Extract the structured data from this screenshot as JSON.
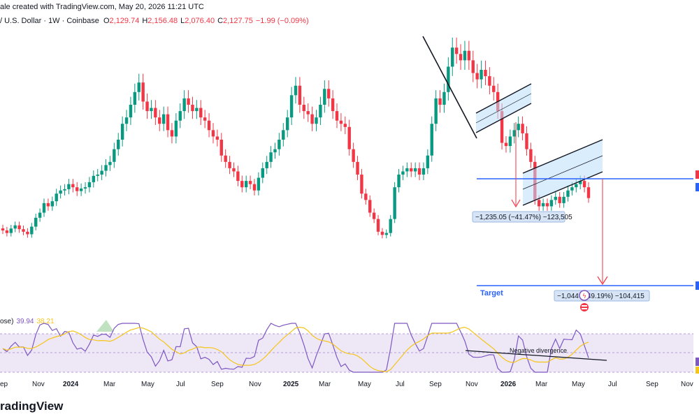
{
  "header": {
    "created": "ale created with TradingView.com, May 20, 2026 11:21 UTC",
    "symbol": "/ U.S. Dollar · 1W · Coinbase",
    "ohlc": [
      {
        "k": "O",
        "v": "2,129.74"
      },
      {
        "k": "H",
        "v": "2,156.48"
      },
      {
        "k": "L",
        "v": "2,076.40"
      },
      {
        "k": "C",
        "v": "2,127.75"
      },
      {
        "k": "",
        "v": "−1.99 (−0.09%)"
      }
    ]
  },
  "rsi_legend": {
    "name": "ose)",
    "value1": "39.94",
    "value2": "38.21"
  },
  "annotations": {
    "measure1": "−1,235.05 (−41.47%) −123,505",
    "measure2": "−1,044 (−49.19%) −104,415",
    "target": "Target",
    "divergence": "Negative divergence"
  },
  "brand": "radingView",
  "colors": {
    "up": "#089981",
    "down": "#f23645",
    "line": "#2962ff",
    "rsi": "#7e57c2",
    "rsi_ma": "#f5c518"
  },
  "chart_data": {
    "type": "candlestick",
    "x_labels": [
      {
        "t": "ep",
        "bold": false
      },
      {
        "t": "Nov",
        "bold": false
      },
      {
        "t": "2024",
        "bold": true
      },
      {
        "t": "Mar",
        "bold": false
      },
      {
        "t": "May",
        "bold": false
      },
      {
        "t": "Jul",
        "bold": false
      },
      {
        "t": "Sep",
        "bold": false
      },
      {
        "t": "Nov",
        "bold": false
      },
      {
        "t": "2025",
        "bold": true
      },
      {
        "t": "Mar",
        "bold": false
      },
      {
        "t": "May",
        "bold": false
      },
      {
        "t": "Jul",
        "bold": false
      },
      {
        "t": "Sep",
        "bold": false
      },
      {
        "t": "Nov",
        "bold": false
      },
      {
        "t": "2026",
        "bold": true
      },
      {
        "t": "Mar",
        "bold": false
      },
      {
        "t": "May",
        "bold": false
      },
      {
        "t": "Jul",
        "bold": false
      },
      {
        "t": "Sep",
        "bold": false
      },
      {
        "t": "Nov",
        "bold": false
      }
    ],
    "weekly_close_approx": [
      1620,
      1580,
      1650,
      1700,
      1640,
      1600,
      1560,
      1680,
      1820,
      1900,
      2050,
      2000,
      2080,
      2200,
      2250,
      2270,
      2350,
      2300,
      2240,
      2280,
      2300,
      2380,
      2480,
      2500,
      2560,
      2650,
      2700,
      2900,
      3050,
      3300,
      3400,
      3600,
      3800,
      3950,
      3650,
      3500,
      3550,
      3400,
      3300,
      3450,
      3200,
      3100,
      3350,
      3500,
      3700,
      3600,
      3500,
      3550,
      3400,
      3350,
      3200,
      3100,
      3050,
      2800,
      2700,
      2600,
      2550,
      2400,
      2300,
      2400,
      2350,
      2250,
      2450,
      2600,
      2700,
      2850,
      2900,
      3050,
      3200,
      3400,
      3750,
      3900,
      3600,
      3500,
      3450,
      3300,
      3400,
      3600,
      3850,
      3700,
      3500,
      3350,
      3300,
      3250,
      2900,
      2700,
      2500,
      2200,
      2100,
      1900,
      1800,
      1600,
      1550,
      1580,
      1800,
      2300,
      2500,
      2550,
      2600,
      2550,
      2600,
      2500,
      2600,
      2800,
      3300,
      3700,
      3600,
      3800,
      4200,
      4500,
      4400,
      4300,
      4450,
      4300,
      4100,
      4000,
      4150,
      4050,
      3900,
      3800,
      3500,
      3000,
      2950,
      3100,
      3200,
      3300,
      3150,
      2900,
      2700,
      2100,
      2000,
      2050,
      2000,
      2100,
      2150,
      2050,
      2150,
      2250,
      2300,
      2350,
      2400,
      2300,
      2130
    ]
  }
}
